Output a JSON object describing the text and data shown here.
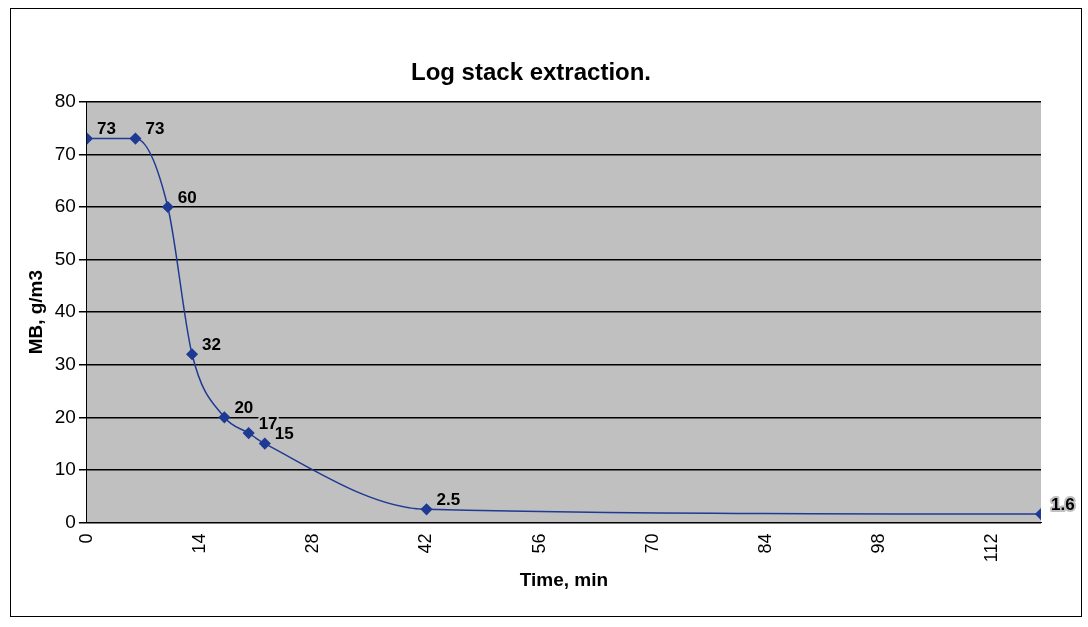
{
  "chart_data": {
    "type": "line",
    "title": "Log stack extraction.",
    "xlabel": "Time, min",
    "ylabel": "MB, g/m3",
    "x": [
      0,
      6,
      10,
      13,
      17,
      20,
      22,
      42,
      118
    ],
    "series": [
      {
        "color": "#1f3a93",
        "values": [
          73,
          73,
          60,
          32,
          20,
          17,
          15,
          2.5,
          1.6
        ]
      }
    ],
    "xlim": [
      0,
      118
    ],
    "xticks": [
      0,
      14,
      28,
      42,
      56,
      70,
      84,
      98,
      112
    ],
    "ylim": [
      0,
      80
    ],
    "yticks": [
      0,
      10,
      20,
      30,
      40,
      50,
      60,
      70,
      80
    ],
    "grid": "y",
    "legend": false,
    "marker": "diamond",
    "data_labels": true
  }
}
